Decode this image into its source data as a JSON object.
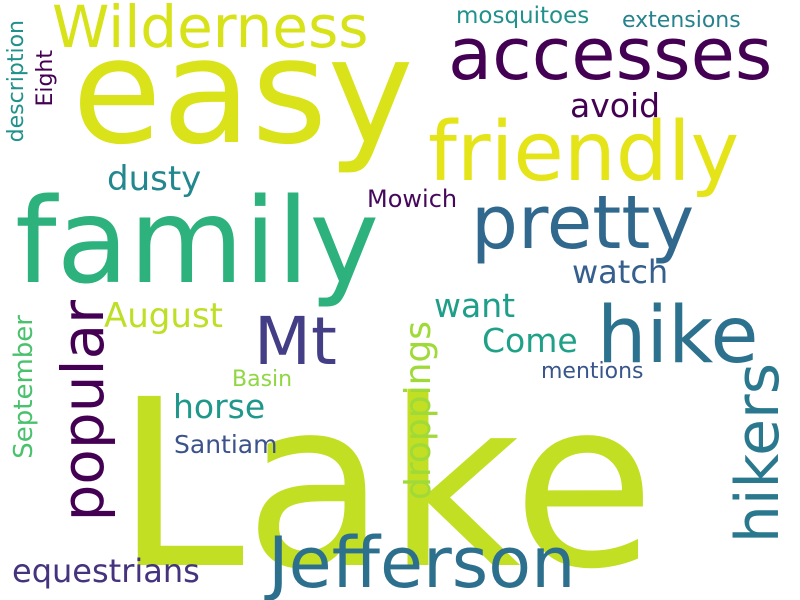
{
  "words": [
    {
      "text": "Lake",
      "color": "#c2df23"
    },
    {
      "text": "easy",
      "color": "#dae319"
    },
    {
      "text": "family",
      "color": "#2db27d"
    },
    {
      "text": "friendly",
      "color": "#e5e419"
    },
    {
      "text": "accesses",
      "color": "#440154"
    },
    {
      "text": "Wilderness",
      "color": "#d8e219"
    },
    {
      "text": "pretty",
      "color": "#31688e"
    },
    {
      "text": "hike",
      "color": "#2c728e"
    },
    {
      "text": "Mt",
      "color": "#433e85"
    },
    {
      "text": "Jefferson",
      "color": "#2d708e"
    },
    {
      "text": "popular",
      "color": "#440154"
    },
    {
      "text": "hikers",
      "color": "#2a788e"
    },
    {
      "text": "droppings",
      "color": "#a0da39"
    },
    {
      "text": "avoid",
      "color": "#440154"
    },
    {
      "text": "dusty",
      "color": "#23888e"
    },
    {
      "text": "watch",
      "color": "#355f8d"
    },
    {
      "text": "want",
      "color": "#1f9e89"
    },
    {
      "text": "Come",
      "color": "#1fa187"
    },
    {
      "text": "August",
      "color": "#bddf26"
    },
    {
      "text": "horse",
      "color": "#1f988b"
    },
    {
      "text": "September",
      "color": "#4ac16d"
    },
    {
      "text": "equestrians",
      "color": "#46337e"
    },
    {
      "text": "Santiam",
      "color": "#3b528b"
    },
    {
      "text": "Basin",
      "color": "#90d743"
    },
    {
      "text": "Mowich",
      "color": "#46085c"
    },
    {
      "text": "mentions",
      "color": "#39568c"
    },
    {
      "text": "mosquitoes",
      "color": "#21918c"
    },
    {
      "text": "extensions",
      "color": "#26828e"
    },
    {
      "text": "description",
      "color": "#21918c"
    },
    {
      "text": "Eight",
      "color": "#440154"
    }
  ]
}
